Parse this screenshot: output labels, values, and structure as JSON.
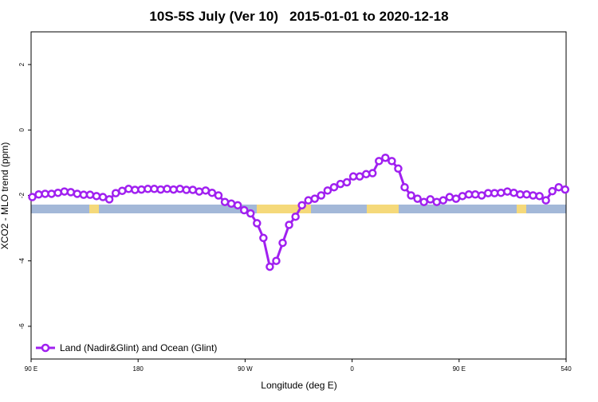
{
  "chart_data": {
    "type": "line",
    "title": "10S-5S July (Ver 10)   2015-01-01 to 2020-12-18",
    "x_label": "Longitude (deg E)",
    "y_label": "XCO2 - MLO trend (ppm)",
    "x": [
      91,
      96.4,
      101.8,
      107.2,
      112.6,
      118,
      123.4,
      128.8,
      134.2,
      139.6,
      145,
      150.4,
      155.8,
      161.2,
      166.6,
      172,
      177.4,
      182.8,
      188.2,
      193.6,
      199,
      204.4,
      209.8,
      215.2,
      220.6,
      226,
      231.4,
      236.8,
      242.2,
      247.6,
      253,
      258.4,
      263.8,
      269.2,
      274.6,
      280,
      285.4,
      290.8,
      296.2,
      301.6,
      307,
      312.4,
      317.8,
      323.2,
      328.6,
      334,
      339.4,
      344.8,
      350.2,
      355.6,
      361,
      366.4,
      371.8,
      377.2,
      382.6,
      388,
      393.4,
      398.8,
      404.2,
      409.6,
      415,
      420.4,
      425.8,
      431.2,
      436.6,
      442,
      447.4,
      452.8,
      458.2,
      463.6,
      469,
      474.4,
      479.8,
      485.2,
      490.6,
      496,
      501.4,
      506.8,
      512.2,
      517.6,
      523,
      528.4,
      533.8,
      539.2
    ],
    "series": [
      {
        "name": "Land (Nadir&Glint) and Ocean (Glint)",
        "color": "#a020f0",
        "values": [
          -2.05,
          -1.97,
          -1.95,
          -1.95,
          -1.92,
          -1.88,
          -1.9,
          -1.95,
          -1.98,
          -1.98,
          -2.02,
          -2.05,
          -2.12,
          -1.93,
          -1.86,
          -1.8,
          -1.83,
          -1.82,
          -1.8,
          -1.8,
          -1.82,
          -1.8,
          -1.82,
          -1.8,
          -1.83,
          -1.83,
          -1.88,
          -1.85,
          -1.92,
          -2.0,
          -2.2,
          -2.25,
          -2.3,
          -2.45,
          -2.55,
          -2.85,
          -3.3,
          -4.18,
          -4.0,
          -3.45,
          -2.9,
          -2.65,
          -2.3,
          -2.15,
          -2.1,
          -2.0,
          -1.85,
          -1.75,
          -1.65,
          -1.6,
          -1.42,
          -1.42,
          -1.35,
          -1.32,
          -0.95,
          -0.85,
          -0.95,
          -1.18,
          -1.75,
          -2.0,
          -2.1,
          -2.2,
          -2.12,
          -2.2,
          -2.15,
          -2.05,
          -2.1,
          -2.02,
          -1.97,
          -1.97,
          -2.0,
          -1.93,
          -1.93,
          -1.92,
          -1.88,
          -1.92,
          -1.97,
          -1.97,
          -2.0,
          -2.02,
          -2.15,
          -1.87,
          -1.75,
          -1.82
        ]
      }
    ],
    "xlim": [
      90,
      540
    ],
    "xticks": [
      {
        "value": 90,
        "label": "90 E"
      },
      180,
      {
        "value": 270,
        "label": "90 W"
      },
      {
        "value": 360,
        "label": "0"
      },
      {
        "value": 450,
        "label": "90 E"
      },
      540
    ],
    "ylim": [
      -7,
      3
    ],
    "yticks": [
      -6,
      -4,
      -2,
      0,
      2
    ],
    "legend": "bottom-left"
  }
}
